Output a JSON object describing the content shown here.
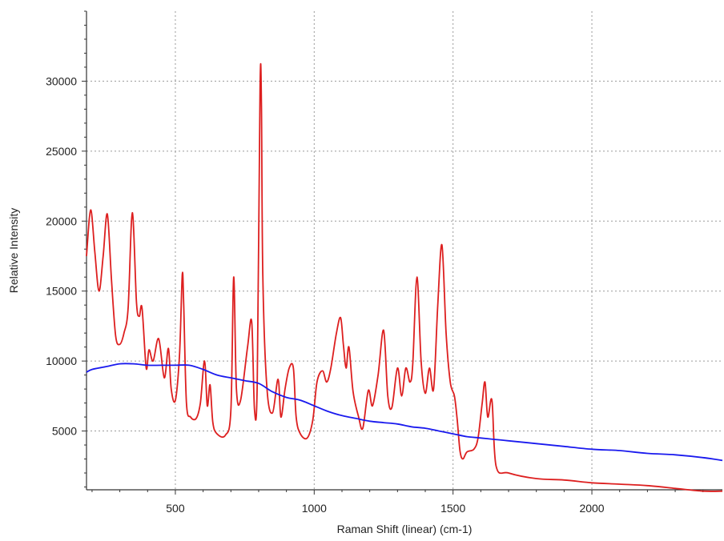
{
  "chart_data": {
    "type": "line",
    "title": "",
    "xlabel": "Raman Shift (linear) (cm-1)",
    "ylabel": "Relative Intensity",
    "xlim": [
      180,
      2470
    ],
    "ylim": [
      800,
      35000
    ],
    "x_ticks": [
      500,
      1000,
      1500,
      2000
    ],
    "y_ticks": [
      5000,
      10000,
      15000,
      20000,
      25000,
      30000
    ],
    "grid": true,
    "legend": "none",
    "series": [
      {
        "color": "#dd1f1f",
        "x": [
          180,
          195,
          210,
          225,
          240,
          255,
          270,
          285,
          300,
          315,
          330,
          345,
          360,
          370,
          380,
          395,
          405,
          420,
          440,
          460,
          475,
          485,
          500,
          515,
          525,
          530,
          540,
          555,
          575,
          590,
          605,
          615,
          625,
          635,
          650,
          680,
          700,
          710,
          720,
          735,
          760,
          775,
          785,
          795,
          805,
          810,
          815,
          830,
          850,
          870,
          880,
          895,
          910,
          925,
          935,
          950,
          975,
          995,
          1010,
          1030,
          1045,
          1060,
          1080,
          1095,
          1105,
          1115,
          1125,
          1140,
          1160,
          1175,
          1195,
          1210,
          1230,
          1250,
          1265,
          1280,
          1300,
          1315,
          1330,
          1345,
          1355,
          1370,
          1385,
          1400,
          1415,
          1430,
          1445,
          1460,
          1475,
          1490,
          1505,
          1515,
          1525,
          1535,
          1550,
          1575,
          1590,
          1605,
          1615,
          1625,
          1640,
          1655,
          1700,
          1800,
          1900,
          2000,
          2100,
          2200,
          2300,
          2400,
          2470
        ],
        "y": [
          17500,
          20800,
          17800,
          15000,
          17500,
          20500,
          15800,
          11800,
          11200,
          12000,
          13800,
          20600,
          14200,
          13200,
          13800,
          9500,
          10800,
          10000,
          11600,
          8800,
          10900,
          8000,
          7200,
          10500,
          16200,
          14000,
          7000,
          6000,
          5900,
          7000,
          10000,
          6800,
          8300,
          5600,
          4800,
          4700,
          6500,
          16000,
          8000,
          7200,
          11000,
          12800,
          6500,
          8500,
          29500,
          28500,
          16000,
          8000,
          6300,
          8700,
          6000,
          8000,
          9500,
          9500,
          6000,
          4800,
          4500,
          5800,
          8500,
          9300,
          8500,
          9500,
          12000,
          13100,
          11200,
          9500,
          11000,
          7800,
          6000,
          5200,
          7900,
          6800,
          9000,
          12200,
          7500,
          6700,
          9500,
          7500,
          9500,
          8500,
          9800,
          16000,
          10000,
          7700,
          9500,
          8000,
          14000,
          18300,
          12000,
          8500,
          7500,
          5800,
          3600,
          3000,
          3500,
          3700,
          4500,
          7000,
          8500,
          6000,
          7200,
          2500,
          2000,
          1600,
          1500,
          1300,
          1200,
          1100,
          900,
          700,
          700
        ]
      },
      {
        "color": "#1a1aee",
        "x": [
          180,
          200,
          250,
          300,
          350,
          400,
          450,
          500,
          550,
          600,
          650,
          700,
          750,
          800,
          850,
          900,
          950,
          1000,
          1050,
          1100,
          1150,
          1200,
          1250,
          1300,
          1350,
          1400,
          1450,
          1500,
          1550,
          1600,
          1650,
          1700,
          1800,
          1900,
          2000,
          2100,
          2200,
          2300,
          2400,
          2470
        ],
        "y": [
          9200,
          9400,
          9600,
          9800,
          9800,
          9700,
          9700,
          9700,
          9700,
          9400,
          9000,
          8800,
          8600,
          8400,
          7800,
          7400,
          7200,
          6800,
          6400,
          6100,
          5900,
          5700,
          5600,
          5500,
          5300,
          5200,
          5000,
          4800,
          4600,
          4500,
          4400,
          4300,
          4100,
          3900,
          3700,
          3600,
          3400,
          3300,
          3100,
          2900
        ]
      }
    ]
  }
}
